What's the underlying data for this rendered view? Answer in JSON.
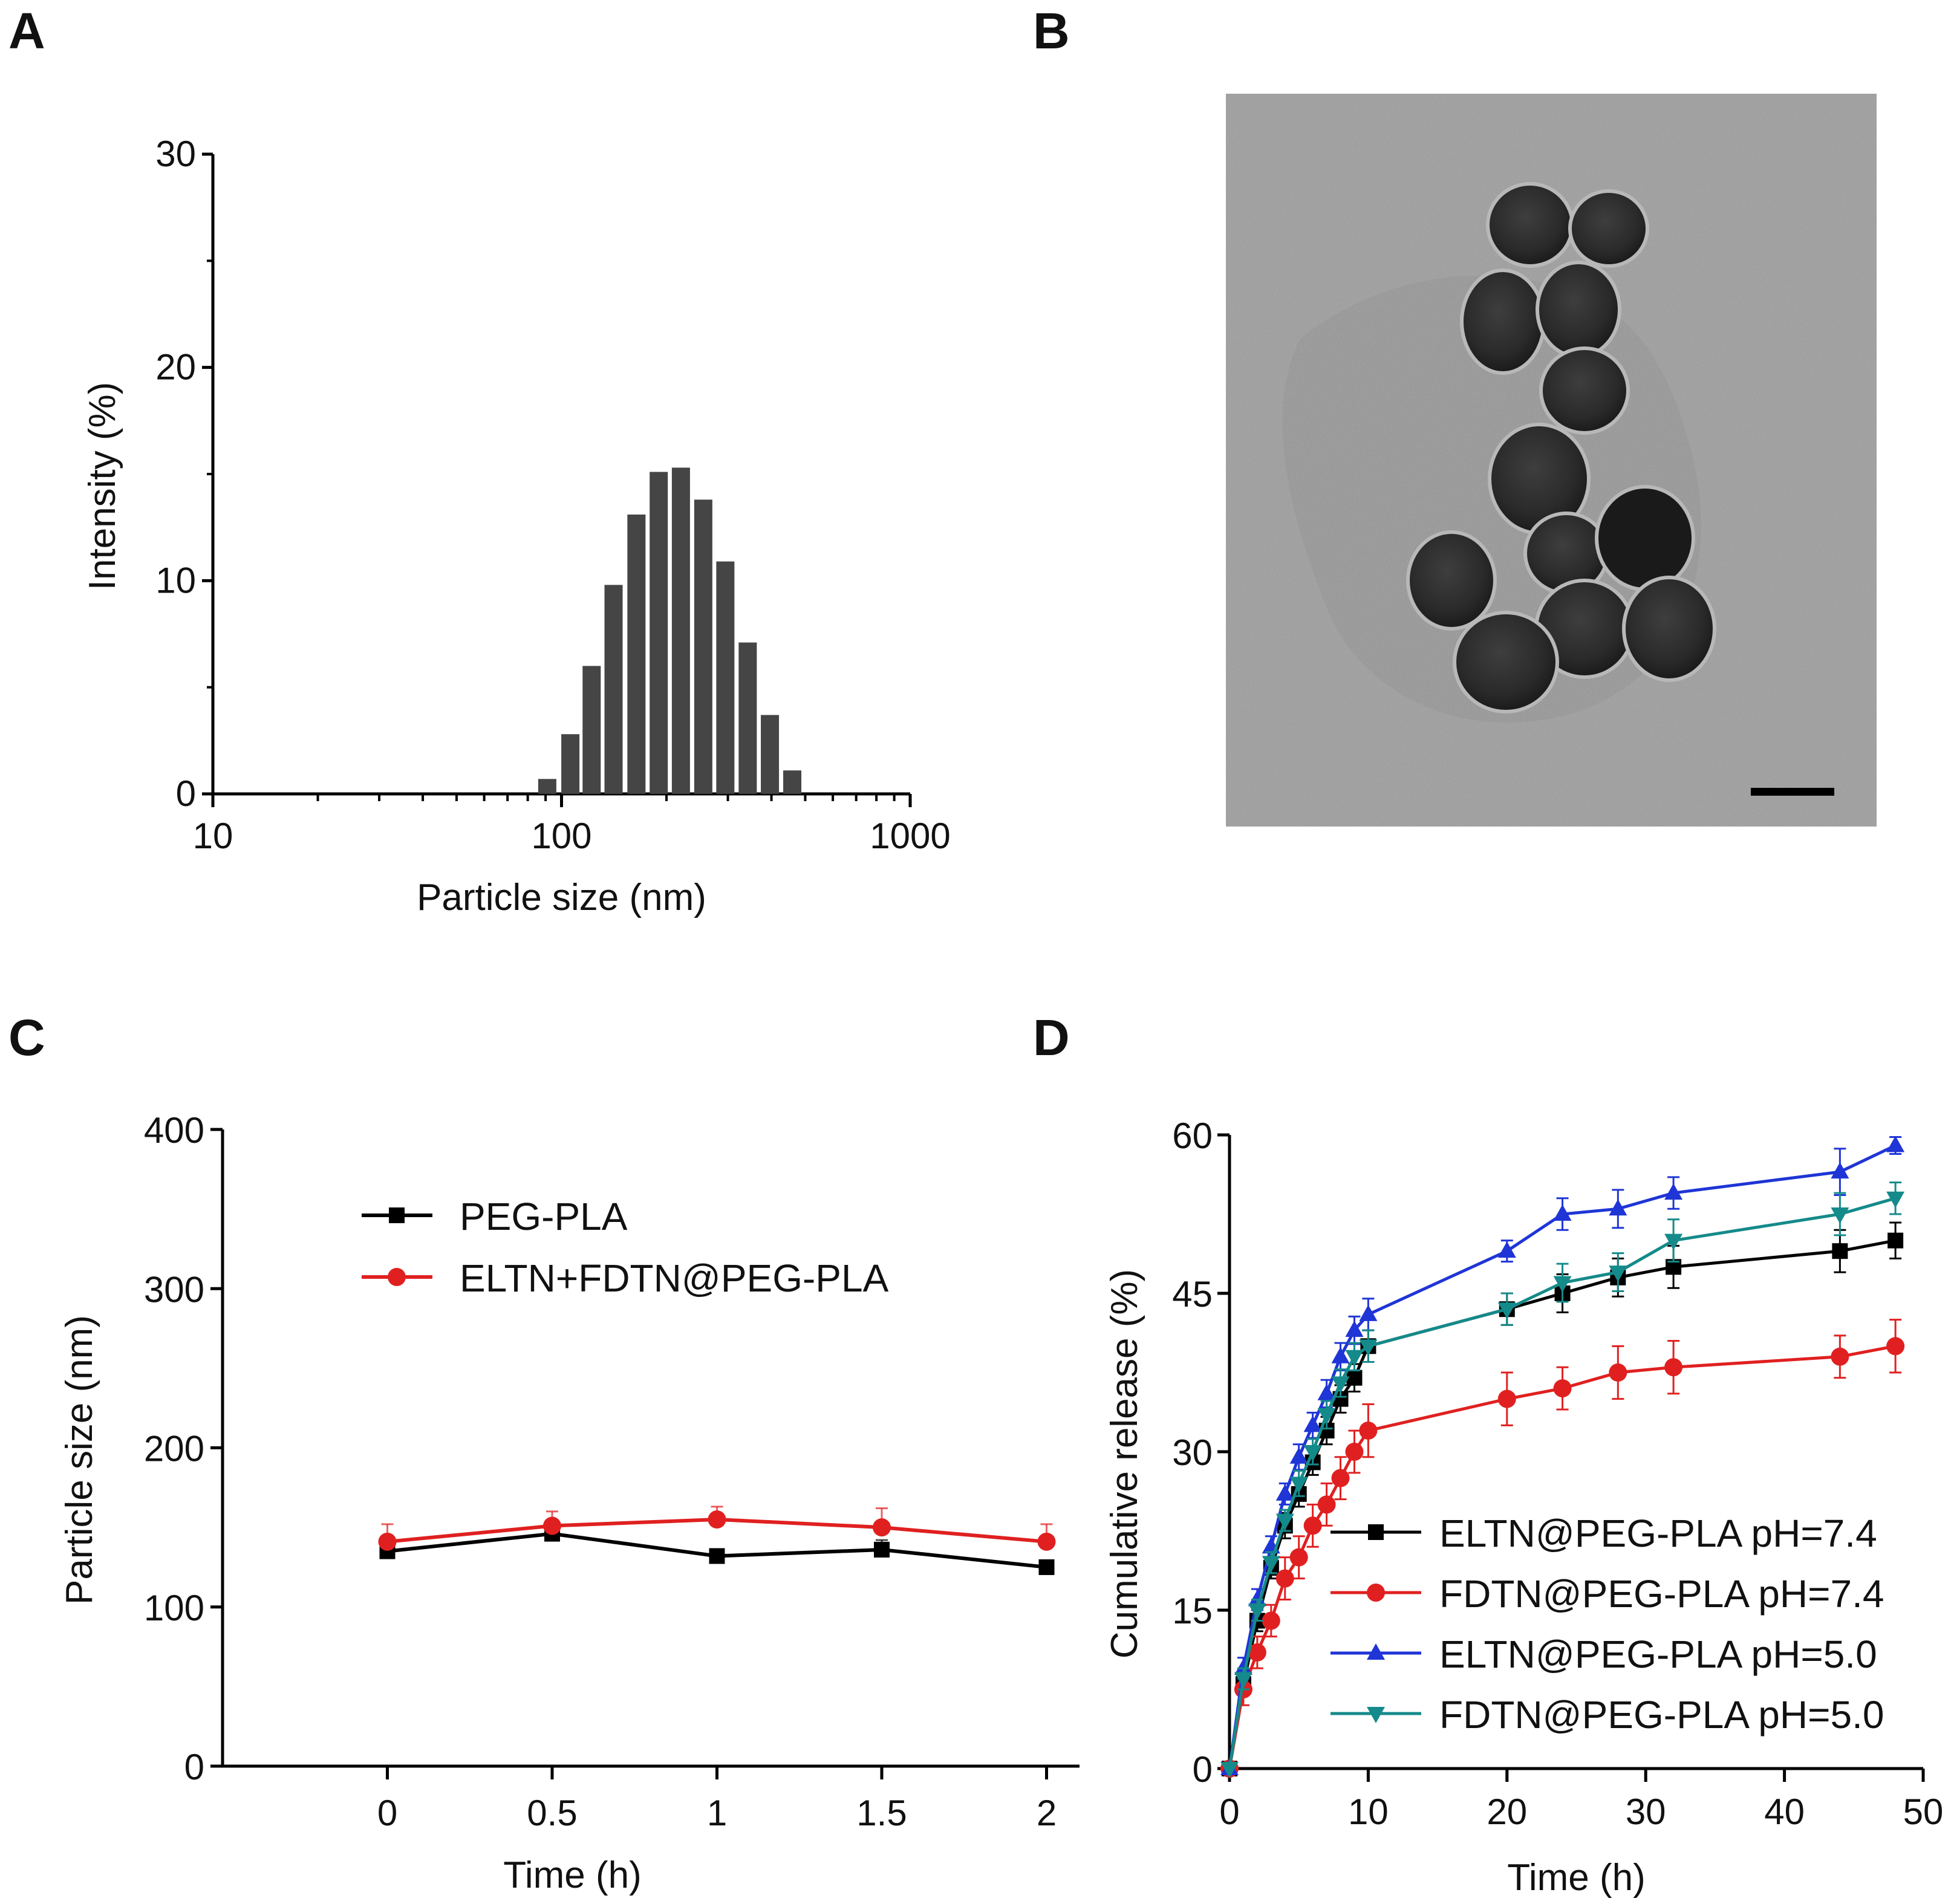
{
  "panels": {
    "A": {
      "label": "A"
    },
    "B": {
      "label": "B"
    },
    "C": {
      "label": "C"
    },
    "D": {
      "label": "D"
    }
  },
  "chart_data": [
    {
      "panel": "A",
      "type": "bar",
      "xscale": "log",
      "xlim": [
        10,
        1000
      ],
      "ylim": [
        0,
        30
      ],
      "xticks": [
        "10",
        "100",
        "1000"
      ],
      "yticks": [
        "0",
        "10",
        "20",
        "30"
      ],
      "xlabel": "Particle size (nm)",
      "ylabel": "Intensity (%)",
      "x": [
        91,
        106,
        122,
        141,
        164,
        190,
        220,
        255,
        295,
        342,
        396,
        459
      ],
      "values": [
        0.7,
        2.8,
        6.0,
        9.8,
        13.1,
        15.1,
        15.3,
        13.8,
        10.9,
        7.1,
        3.7,
        1.1
      ],
      "color": "#454545"
    },
    {
      "panel": "B",
      "type": "image",
      "description_none": true,
      "scale_bar": true
    },
    {
      "panel": "C",
      "type": "line",
      "xlim": [
        -0.5,
        2.1
      ],
      "ylim": [
        0,
        400
      ],
      "xticks": [
        "0",
        "0.5",
        "1",
        "1.5",
        "2"
      ],
      "yticks": [
        "0",
        "100",
        "200",
        "300",
        "400"
      ],
      "xlabel": "Time (h)",
      "ylabel": "Particle size (nm)",
      "x": [
        0,
        0.5,
        1,
        1.5,
        2
      ],
      "series": [
        {
          "name": "PEG-PLA",
          "values": [
            135,
            146,
            132,
            136,
            125
          ],
          "errors": [
            5,
            4,
            3,
            6,
            4
          ],
          "color": "#000000",
          "marker": "square"
        },
        {
          "name": "ELTN+FDTN@PEG-PLA",
          "values": [
            141,
            151,
            155,
            150,
            141
          ],
          "errors": [
            11,
            9,
            8,
            12,
            11
          ],
          "color": "#e02020",
          "marker": "circle"
        }
      ]
    },
    {
      "panel": "D",
      "type": "line",
      "xlim": [
        0,
        50
      ],
      "ylim": [
        0,
        60
      ],
      "xticks": [
        "0",
        "10",
        "20",
        "30",
        "40",
        "50"
      ],
      "yticks": [
        "0",
        "15",
        "30",
        "45",
        "60"
      ],
      "xlabel": "Time (h)",
      "ylabel": "Cumulative release (%)",
      "x": [
        0,
        1,
        2,
        3,
        4,
        5,
        6,
        7,
        8,
        9,
        10,
        20,
        24,
        28,
        32,
        44,
        48
      ],
      "series": [
        {
          "name": "ELTN@PEG-PLA pH=7.4",
          "values": [
            0,
            8,
            14,
            19,
            23,
            26,
            29,
            32,
            35,
            37,
            40,
            43.5,
            45,
            46.5,
            47.5,
            49,
            50
          ],
          "errors": [
            0,
            1,
            1,
            1,
            1.2,
            1.2,
            1.2,
            1.3,
            1.3,
            1.3,
            1.5,
            1.5,
            1.8,
            1.8,
            2,
            2,
            1.7
          ],
          "color": "#000000",
          "marker": "square"
        },
        {
          "name": "FDTN@PEG-PLA pH=7.4",
          "values": [
            0,
            7.5,
            11,
            14,
            18,
            20,
            23,
            25,
            27.5,
            30,
            32,
            35,
            36,
            37.5,
            38,
            39,
            40
          ],
          "errors": [
            0,
            1.5,
            1.5,
            1.5,
            2,
            2,
            2,
            2,
            2,
            2,
            2.5,
            2.5,
            2,
            2.5,
            2.5,
            2,
            2.5
          ],
          "color": "#e02020",
          "marker": "circle"
        },
        {
          "name": "ELTN@PEG-PLA pH=5.0",
          "values": [
            0,
            9.5,
            16,
            21,
            26,
            29.5,
            32.5,
            35.5,
            39,
            41.5,
            43,
            49,
            52.5,
            53,
            54.5,
            56.5,
            59
          ],
          "errors": [
            0,
            1,
            1,
            1,
            1,
            1.2,
            1.2,
            1.3,
            1.3,
            1.3,
            1.5,
            1,
            1.5,
            1.8,
            1.5,
            2.2,
            0.8
          ],
          "color": "#1f35d6",
          "marker": "triangle-up"
        },
        {
          "name": "FDTN@PEG-PLA pH=5.0",
          "values": [
            0,
            8.5,
            15,
            19.5,
            23.5,
            27,
            30,
            33.5,
            36.5,
            39,
            40,
            43.5,
            46,
            47,
            50,
            52.5,
            54
          ],
          "errors": [
            0,
            1,
            1,
            1,
            1,
            1.2,
            1.2,
            1.3,
            1.3,
            1.3,
            1.5,
            1.5,
            1.8,
            1.8,
            2,
            2,
            1.5
          ],
          "color": "#158a8a",
          "marker": "triangle-down"
        }
      ]
    }
  ]
}
